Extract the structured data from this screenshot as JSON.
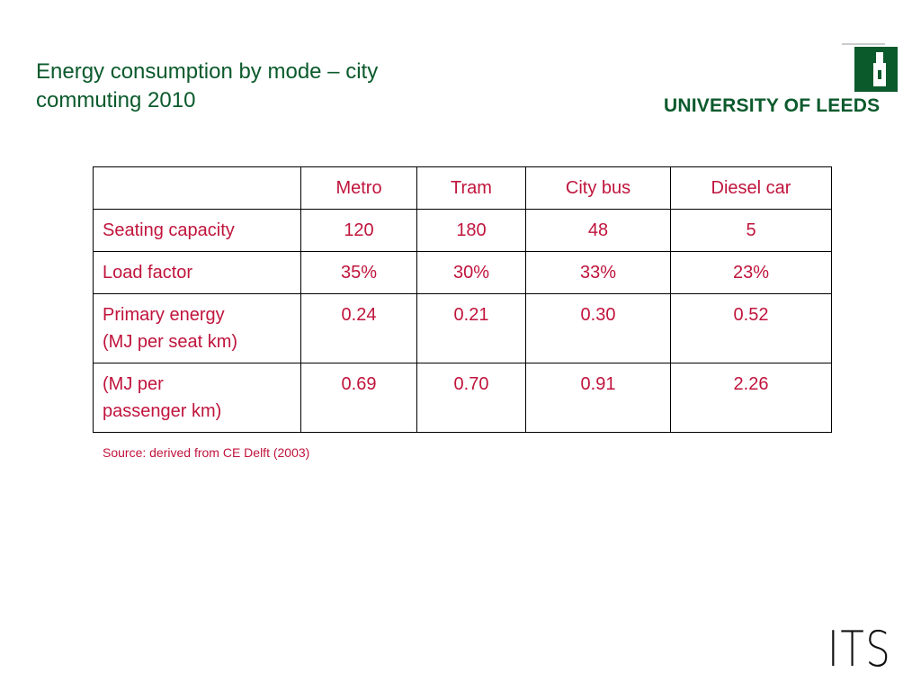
{
  "header": {
    "title_lines": [
      "Energy consumption by mode – city",
      "commuting 2010"
    ],
    "logo_text": "UNIVERSITY OF LEEDS"
  },
  "table": {
    "columns": [
      "Metro",
      "Tram",
      "City bus",
      "Diesel car"
    ],
    "rows": [
      {
        "label": [
          "Seating capacity"
        ],
        "values": [
          "120",
          "180",
          "48",
          "5"
        ]
      },
      {
        "label": [
          "Load factor"
        ],
        "values": [
          "35%",
          "30%",
          "33%",
          "23%"
        ]
      },
      {
        "label": [
          "Primary energy",
          "(MJ per seat km)"
        ],
        "values": [
          "0.24",
          "0.21",
          "0.30",
          "0.52"
        ]
      },
      {
        "label": [
          "(MJ per",
          "passenger km)"
        ],
        "values": [
          "0.69",
          "0.70",
          "0.91",
          "2.26"
        ]
      }
    ]
  },
  "source": "Source: derived from CE Delft (2003)",
  "footer": {
    "logo_text": "ITS"
  }
}
